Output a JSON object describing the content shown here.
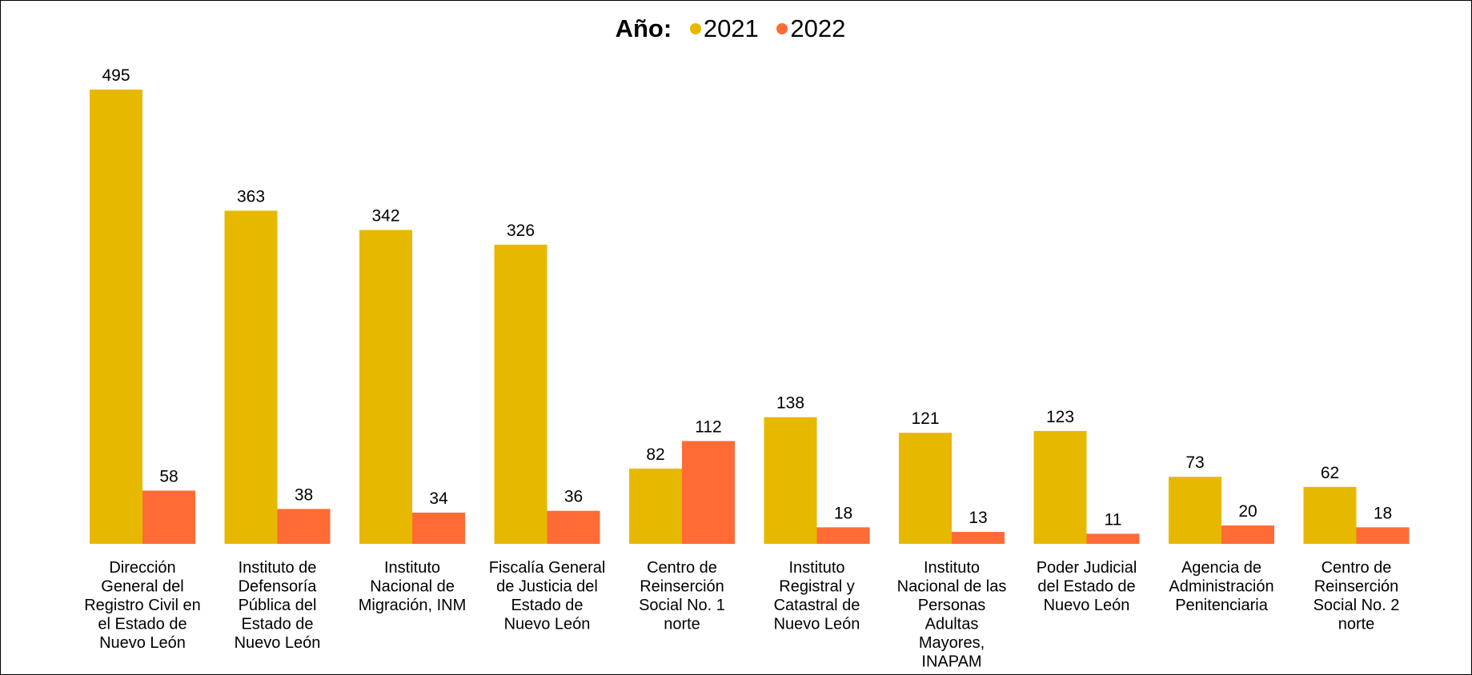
{
  "legend": {
    "title": "Año:",
    "items": [
      {
        "label": "2021",
        "color": "#E6B800"
      },
      {
        "label": "2022",
        "color": "#FF6B35"
      }
    ]
  },
  "chart_data": {
    "type": "bar",
    "title": "",
    "xlabel": "",
    "ylabel": "",
    "ylim": [
      0,
      495
    ],
    "grid": false,
    "legend_position": "top-center",
    "categories": [
      [
        "Dirección",
        "General del",
        "Registro Civil en",
        "el Estado de",
        "Nuevo León"
      ],
      [
        "Instituto de",
        "Defensoría",
        "Pública del",
        "Estado de",
        "Nuevo León"
      ],
      [
        "Instituto",
        "Nacional de",
        "Migración, INM"
      ],
      [
        "Fiscalía General",
        "de Justicia del",
        "Estado de",
        "Nuevo León"
      ],
      [
        "Centro de",
        "Reinserción",
        "Social No. 1",
        "norte"
      ],
      [
        "Instituto",
        "Registral y",
        "Catastral de",
        "Nuevo León"
      ],
      [
        "Instituto",
        "Nacional de las",
        "Personas",
        "Adultas",
        "Mayores,",
        "INAPAM"
      ],
      [
        "Poder Judicial",
        "del Estado de",
        "Nuevo León"
      ],
      [
        "Agencia de",
        "Administración",
        "Penitenciaria"
      ],
      [
        "Centro de",
        "Reinserción",
        "Social No. 2",
        "norte"
      ]
    ],
    "series": [
      {
        "name": "2021",
        "color": "#E6B800",
        "values": [
          495,
          363,
          342,
          326,
          82,
          138,
          121,
          123,
          73,
          62
        ]
      },
      {
        "name": "2022",
        "color": "#FF6B35",
        "values": [
          58,
          38,
          34,
          36,
          112,
          18,
          13,
          11,
          20,
          18
        ]
      }
    ]
  }
}
